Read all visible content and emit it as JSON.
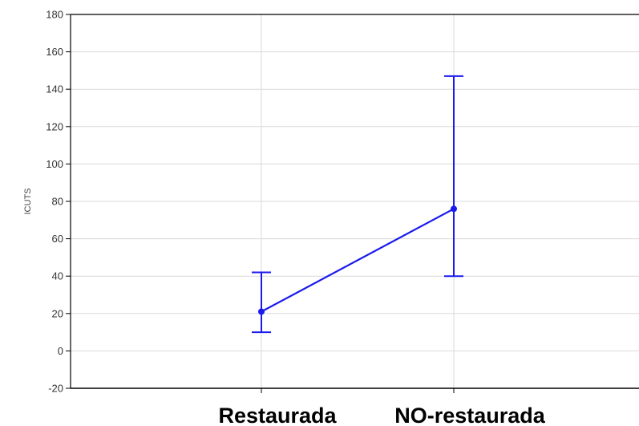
{
  "chart_data": {
    "type": "line",
    "categories": [
      "Restaurada",
      "NO-restaurada"
    ],
    "ylabel": "ICUTS",
    "ylim": [
      -20,
      180
    ],
    "yticks": [
      -20,
      0,
      20,
      40,
      60,
      80,
      100,
      120,
      140,
      160,
      180
    ],
    "series": [
      {
        "values": [
          21,
          76
        ],
        "lower": [
          10,
          40
        ],
        "upper": [
          42,
          147
        ]
      }
    ],
    "grid": true,
    "colors": {
      "series": "#1a1aee",
      "grid": "#d9d9d9",
      "axis": "#000000"
    }
  }
}
